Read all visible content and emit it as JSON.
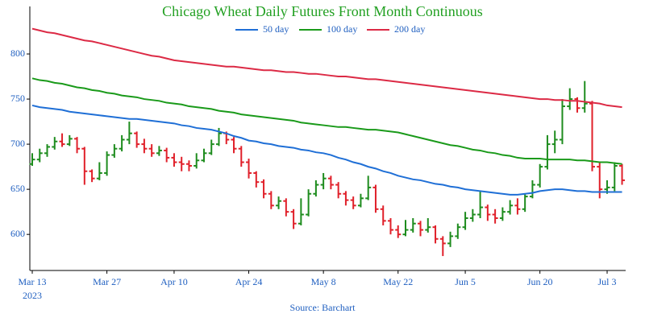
{
  "chart_data": {
    "type": "ohlc",
    "title": "Chicago Wheat Daily Futures Front Month Continuous",
    "source": "Source: Barchart",
    "x_year_label": "2023",
    "categories": [
      "Mar 13",
      null,
      null,
      null,
      null,
      null,
      null,
      null,
      null,
      null,
      "Mar 27",
      null,
      null,
      null,
      null,
      null,
      null,
      null,
      null,
      "Apr 10",
      null,
      null,
      null,
      null,
      null,
      null,
      null,
      null,
      null,
      "Apr 24",
      null,
      null,
      null,
      null,
      null,
      null,
      null,
      null,
      null,
      "May 8",
      null,
      null,
      null,
      null,
      null,
      null,
      null,
      null,
      null,
      "May 22",
      null,
      null,
      null,
      null,
      null,
      null,
      null,
      null,
      "Jun 5",
      null,
      null,
      null,
      null,
      null,
      null,
      null,
      null,
      null,
      "Jun 20",
      null,
      null,
      null,
      null,
      null,
      null,
      null,
      null,
      "Jul 3",
      null,
      null
    ],
    "open": [
      678,
      683,
      690,
      697,
      703,
      700,
      706,
      695,
      670,
      662,
      668,
      688,
      695,
      705,
      712,
      700,
      695,
      690,
      693,
      685,
      680,
      678,
      676,
      682,
      690,
      700,
      712,
      705,
      695,
      680,
      668,
      658,
      645,
      632,
      637,
      625,
      612,
      622,
      645,
      655,
      662,
      655,
      645,
      638,
      632,
      640,
      652,
      628,
      615,
      605,
      600,
      605,
      612,
      605,
      608,
      595,
      590,
      598,
      608,
      618,
      622,
      630,
      622,
      618,
      625,
      632,
      628,
      642,
      655,
      675,
      700,
      705,
      742,
      750,
      740,
      745,
      675,
      650,
      652,
      676
    ],
    "high": [
      690,
      695,
      700,
      708,
      712,
      710,
      708,
      697,
      672,
      680,
      692,
      700,
      710,
      725,
      714,
      706,
      700,
      698,
      696,
      690,
      686,
      682,
      690,
      695,
      705,
      718,
      714,
      708,
      698,
      684,
      670,
      661,
      648,
      642,
      640,
      628,
      640,
      650,
      660,
      668,
      665,
      658,
      648,
      642,
      645,
      665,
      655,
      632,
      618,
      610,
      616,
      618,
      615,
      618,
      610,
      598,
      603,
      612,
      625,
      628,
      648,
      633,
      628,
      630,
      638,
      640,
      645,
      660,
      678,
      710,
      715,
      750,
      762,
      752,
      770,
      748,
      680,
      660,
      680,
      678
    ],
    "low": [
      676,
      680,
      686,
      694,
      697,
      698,
      690,
      655,
      658,
      660,
      665,
      685,
      692,
      700,
      696,
      690,
      686,
      687,
      680,
      675,
      670,
      670,
      673,
      680,
      688,
      698,
      700,
      690,
      675,
      662,
      652,
      640,
      628,
      628,
      620,
      606,
      610,
      620,
      642,
      650,
      650,
      640,
      632,
      628,
      630,
      638,
      624,
      610,
      600,
      596,
      598,
      602,
      598,
      602,
      590,
      576,
      586,
      595,
      605,
      614,
      618,
      615,
      612,
      615,
      622,
      622,
      625,
      640,
      652,
      672,
      690,
      700,
      738,
      735,
      735,
      670,
      640,
      645,
      648,
      655
    ],
    "close": [
      683,
      690,
      697,
      703,
      700,
      706,
      695,
      670,
      662,
      668,
      688,
      695,
      705,
      712,
      700,
      695,
      690,
      693,
      685,
      680,
      678,
      676,
      682,
      690,
      700,
      712,
      705,
      695,
      680,
      668,
      658,
      645,
      632,
      637,
      625,
      612,
      622,
      645,
      655,
      662,
      655,
      645,
      638,
      632,
      640,
      652,
      628,
      615,
      605,
      600,
      605,
      612,
      605,
      608,
      595,
      590,
      598,
      608,
      618,
      622,
      630,
      622,
      618,
      625,
      632,
      628,
      642,
      655,
      675,
      700,
      705,
      742,
      750,
      740,
      745,
      675,
      650,
      652,
      676,
      660
    ],
    "up_color": "#1e8c1e",
    "down_color": "#e0202a",
    "series": [
      {
        "name": "50 day",
        "color": "#1f6fd6",
        "values": [
          743,
          741,
          740,
          739,
          738,
          736,
          735,
          734,
          733,
          732,
          731,
          730,
          729,
          728,
          728,
          727,
          726,
          725,
          724,
          723,
          721,
          720,
          718,
          717,
          716,
          714,
          712,
          709,
          707,
          704,
          703,
          701,
          700,
          698,
          697,
          696,
          694,
          693,
          691,
          690,
          688,
          685,
          683,
          680,
          678,
          675,
          673,
          670,
          668,
          665,
          663,
          661,
          660,
          658,
          656,
          655,
          653,
          652,
          650,
          649,
          648,
          647,
          646,
          645,
          644,
          644,
          645,
          646,
          648,
          649,
          650,
          650,
          649,
          648,
          648,
          647,
          647,
          647,
          647,
          647
        ]
      },
      {
        "name": "100 day",
        "color": "#1a9a1a",
        "values": [
          773,
          771,
          770,
          768,
          767,
          765,
          763,
          762,
          760,
          759,
          757,
          756,
          754,
          753,
          752,
          750,
          749,
          748,
          746,
          745,
          744,
          742,
          741,
          740,
          739,
          737,
          736,
          735,
          733,
          732,
          731,
          730,
          729,
          728,
          727,
          726,
          724,
          723,
          722,
          721,
          720,
          719,
          719,
          718,
          717,
          716,
          716,
          715,
          714,
          713,
          711,
          709,
          707,
          705,
          703,
          701,
          699,
          698,
          696,
          694,
          693,
          691,
          690,
          688,
          687,
          685,
          684,
          684,
          684,
          683,
          683,
          683,
          683,
          682,
          682,
          681,
          680,
          680,
          679,
          678
        ]
      },
      {
        "name": "200 day",
        "color": "#dc2a45",
        "values": [
          828,
          826,
          824,
          823,
          821,
          819,
          817,
          815,
          814,
          812,
          810,
          808,
          806,
          804,
          802,
          800,
          798,
          797,
          795,
          793,
          792,
          791,
          790,
          789,
          788,
          787,
          786,
          786,
          785,
          784,
          783,
          782,
          782,
          781,
          780,
          780,
          779,
          778,
          778,
          777,
          776,
          775,
          775,
          774,
          773,
          772,
          772,
          771,
          770,
          769,
          768,
          767,
          766,
          765,
          764,
          763,
          762,
          761,
          760,
          759,
          758,
          757,
          756,
          755,
          754,
          753,
          752,
          751,
          750,
          750,
          749,
          749,
          748,
          748,
          747,
          746,
          745,
          743,
          742,
          741
        ]
      }
    ],
    "ylim": [
      560,
      850
    ],
    "yticks": [
      600,
      650,
      700,
      750,
      800
    ],
    "title_color": "#22a022",
    "label_color": "#1f5fc0"
  }
}
